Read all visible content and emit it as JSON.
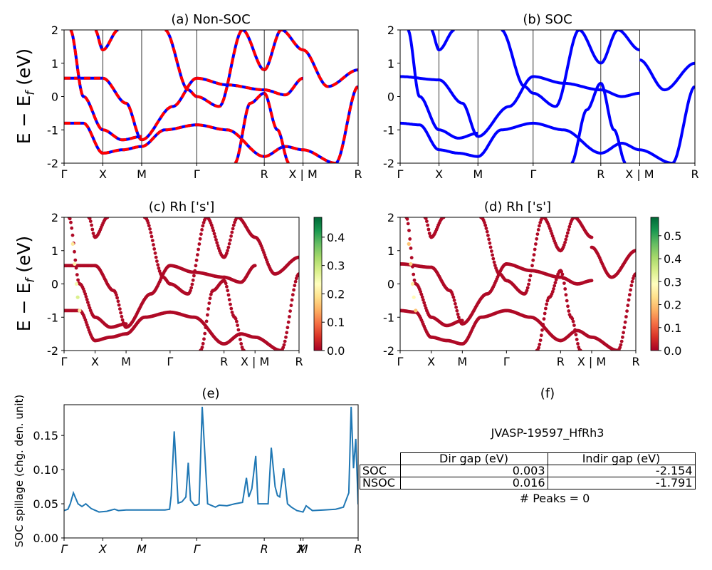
{
  "labels": {
    "ylabel_band": "E − E",
    "ylabel_band_sub": "f",
    "ylabel_band_unit": " (eV)",
    "ylabel_spill": "SOC spillage (chg. den. unit)"
  },
  "colors": {
    "soc": "#0000ff",
    "nsoc": "#ff0000",
    "spillage": "#1f77b4",
    "cmap": [
      "#a50026",
      "#d73027",
      "#f46d43",
      "#fdae61",
      "#fee08b",
      "#ffffbf",
      "#d9ef8b",
      "#a6d96a",
      "#66bd63",
      "#1a9850",
      "#006837"
    ]
  },
  "chart_data": [
    {
      "id": "a",
      "type": "line",
      "title": "(a) Non-SOC",
      "ylim": [
        -2,
        2
      ],
      "yticks": [
        "-2",
        "-1",
        "0",
        "1",
        "2"
      ],
      "xticks": [
        "Γ",
        "X",
        "M",
        "Γ",
        "R",
        "X | M",
        "R"
      ],
      "xtick_pos": [
        0,
        0.5,
        1,
        1.71,
        2.58,
        3.08,
        3.79
      ],
      "series": [
        {
          "x": [
            0,
            0.5
          ],
          "y": [
            0.55,
            0.55
          ]
        },
        {
          "x": [
            0.5,
            0.8,
            1.0
          ],
          "y": [
            0.55,
            -0.2,
            -1.3
          ]
        },
        {
          "x": [
            1.0,
            1.4,
            1.71
          ],
          "y": [
            -1.3,
            -0.3,
            0.55
          ]
        },
        {
          "x": [
            1.71,
            2.1,
            2.58
          ],
          "y": [
            0.55,
            0.35,
            0.2
          ]
        },
        {
          "x": [
            2.58,
            2.85,
            3.08
          ],
          "y": [
            0.2,
            0.05,
            0.55
          ]
        },
        {
          "x": [
            0,
            0.25,
            0.5
          ],
          "y": [
            -0.8,
            -0.8,
            -1.7
          ]
        },
        {
          "x": [
            0.5,
            0.75,
            1.0
          ],
          "y": [
            -1.7,
            -1.6,
            -1.5
          ]
        },
        {
          "x": [
            1.0,
            1.3,
            1.71
          ],
          "y": [
            -1.5,
            -1.0,
            -0.85
          ]
        },
        {
          "x": [
            1.71,
            2.1,
            2.58
          ],
          "y": [
            -0.85,
            -1.0,
            -1.8
          ]
        },
        {
          "x": [
            2.58,
            2.85,
            3.08
          ],
          "y": [
            -1.8,
            -1.5,
            -1.6
          ]
        },
        {
          "x": [
            0.08,
            0.25,
            0.5
          ],
          "y": [
            2.0,
            0.0,
            -1.0
          ]
        },
        {
          "x": [
            0.5,
            0.75,
            1.0
          ],
          "y": [
            -1.0,
            -1.3,
            -1.2
          ]
        },
        {
          "x": [
            0.4,
            0.5,
            0.7
          ],
          "y": [
            2.0,
            1.4,
            2.0
          ]
        },
        {
          "x": [
            1.3,
            1.6,
            1.71
          ],
          "y": [
            2.0,
            0.2,
            0.0
          ]
        },
        {
          "x": [
            1.71,
            2.0,
            2.3,
            2.58
          ],
          "y": [
            0.0,
            -0.3,
            2.0,
            0.8
          ]
        },
        {
          "x": [
            2.58,
            2.8,
            3.08
          ],
          "y": [
            0.8,
            2.0,
            1.4
          ]
        },
        {
          "x": [
            3.08,
            3.4,
            3.79
          ],
          "y": [
            1.4,
            0.3,
            0.8
          ]
        },
        {
          "x": [
            3.08,
            3.5,
            3.79
          ],
          "y": [
            -1.6,
            -2.0,
            0.3
          ]
        },
        {
          "x": [
            2.2,
            2.4,
            2.58
          ],
          "y": [
            -2.0,
            -0.2,
            0.1
          ]
        },
        {
          "x": [
            2.58,
            2.75,
            2.9
          ],
          "y": [
            0.1,
            -1.0,
            -2.0
          ]
        }
      ]
    },
    {
      "id": "b",
      "type": "line",
      "title": "(b) SOC",
      "ylim": [
        -2,
        2
      ],
      "yticks": [
        "-2",
        "-1",
        "0",
        "1",
        "2"
      ],
      "xticks": [
        "Γ",
        "X",
        "M",
        "Γ",
        "R",
        "X | M",
        "R"
      ],
      "xtick_pos": [
        0,
        0.5,
        1,
        1.71,
        2.58,
        3.08,
        3.79
      ],
      "series": [
        {
          "x": [
            0,
            0.5
          ],
          "y": [
            0.6,
            0.5
          ]
        },
        {
          "x": [
            0.5,
            0.8,
            1.0
          ],
          "y": [
            0.5,
            -0.2,
            -1.2
          ]
        },
        {
          "x": [
            1.0,
            1.4,
            1.71
          ],
          "y": [
            -1.2,
            -0.3,
            0.6
          ]
        },
        {
          "x": [
            1.71,
            2.1,
            2.58
          ],
          "y": [
            0.6,
            0.4,
            0.2
          ]
        },
        {
          "x": [
            2.58,
            2.85,
            3.08
          ],
          "y": [
            0.2,
            0.0,
            0.1
          ]
        },
        {
          "x": [
            0,
            0.25,
            0.5
          ],
          "y": [
            -0.8,
            -0.85,
            -1.6
          ]
        },
        {
          "x": [
            0.5,
            0.75,
            1.0
          ],
          "y": [
            -1.6,
            -1.7,
            -1.8
          ]
        },
        {
          "x": [
            1.0,
            1.3,
            1.71
          ],
          "y": [
            -1.8,
            -1.0,
            -0.8
          ]
        },
        {
          "x": [
            1.71,
            2.1,
            2.58
          ],
          "y": [
            -0.8,
            -1.0,
            -1.7
          ]
        },
        {
          "x": [
            2.58,
            2.85,
            3.08
          ],
          "y": [
            -1.7,
            -1.4,
            -1.6
          ]
        },
        {
          "x": [
            0.1,
            0.25,
            0.5
          ],
          "y": [
            2.0,
            0.0,
            -1.0
          ]
        },
        {
          "x": [
            0.5,
            0.75,
            1.0
          ],
          "y": [
            -1.0,
            -1.25,
            -1.1
          ]
        },
        {
          "x": [
            0.4,
            0.5,
            0.7
          ],
          "y": [
            2.0,
            1.4,
            2.0
          ]
        },
        {
          "x": [
            1.3,
            1.6,
            1.71
          ],
          "y": [
            2.0,
            0.3,
            0.1
          ]
        },
        {
          "x": [
            1.71,
            2.0,
            2.3,
            2.58
          ],
          "y": [
            0.1,
            -0.3,
            2.0,
            1.0
          ]
        },
        {
          "x": [
            2.58,
            2.8,
            3.08
          ],
          "y": [
            1.0,
            2.0,
            1.4
          ]
        },
        {
          "x": [
            3.08,
            3.4,
            3.79
          ],
          "y": [
            1.1,
            0.2,
            1.0
          ]
        },
        {
          "x": [
            3.08,
            3.5,
            3.79
          ],
          "y": [
            -1.6,
            -2.0,
            0.3
          ]
        },
        {
          "x": [
            2.2,
            2.4,
            2.58
          ],
          "y": [
            -2.0,
            -0.4,
            0.4
          ]
        },
        {
          "x": [
            2.58,
            2.75,
            2.9
          ],
          "y": [
            0.4,
            -1.0,
            -2.0
          ]
        }
      ]
    },
    {
      "id": "c",
      "type": "scatter",
      "title": "(c)  Rh ['s']",
      "ylim": [
        -2,
        2
      ],
      "yticks": [
        "-2",
        "-1",
        "0",
        "1",
        "2"
      ],
      "xticks": [
        "Γ",
        "X",
        "M",
        "Γ",
        "R",
        "X | M",
        "R"
      ],
      "xtick_pos": [
        0,
        0.5,
        1,
        1.71,
        2.58,
        3.08,
        3.79
      ],
      "colorbar": {
        "ticks": [
          "0.0",
          "0.1",
          "0.2",
          "0.3",
          "0.4"
        ],
        "tick_values": [
          0,
          0.1,
          0.2,
          0.3,
          0.4
        ],
        "max": 0.47
      },
      "bright_points": [
        {
          "x": 0.14,
          "y": 1.2,
          "c": 0.2
        },
        {
          "x": 0.17,
          "y": 0.6,
          "c": 0.22
        },
        {
          "x": 0.2,
          "y": 0.0,
          "c": 0.25
        },
        {
          "x": 0.22,
          "y": -0.4,
          "c": 0.28
        },
        {
          "x": 0.25,
          "y": -0.8,
          "c": 0.2
        }
      ]
    },
    {
      "id": "d",
      "type": "scatter",
      "title": "(d) Rh ['s']",
      "ylim": [
        -2,
        2
      ],
      "yticks": [
        "-2",
        "-1",
        "0",
        "1",
        "2"
      ],
      "xticks": [
        "Γ",
        "X",
        "M",
        "Γ",
        "R",
        "X | M",
        "R"
      ],
      "xtick_pos": [
        0,
        0.5,
        1,
        1.71,
        2.58,
        3.08,
        3.79
      ],
      "colorbar": {
        "ticks": [
          "0.0",
          "0.1",
          "0.2",
          "0.3",
          "0.4",
          "0.5"
        ],
        "tick_values": [
          0,
          0.1,
          0.2,
          0.3,
          0.4,
          0.5
        ],
        "max": 0.58
      },
      "bright_points": [
        {
          "x": 0.14,
          "y": 1.2,
          "c": 0.2
        },
        {
          "x": 0.17,
          "y": 0.6,
          "c": 0.22
        },
        {
          "x": 0.2,
          "y": 0.0,
          "c": 0.25
        },
        {
          "x": 0.22,
          "y": -0.4,
          "c": 0.28
        },
        {
          "x": 0.25,
          "y": -0.8,
          "c": 0.2
        }
      ]
    },
    {
      "id": "e",
      "type": "line",
      "title": "(e)",
      "ylabel": "SOC spillage (chg. den. unit)",
      "ylim": [
        0,
        0.195
      ],
      "yticks": [
        "0.00",
        "0.05",
        "0.10",
        "0.15"
      ],
      "ytick_values": [
        0,
        0.05,
        0.1,
        0.15
      ],
      "xticks": [
        "Γ",
        "X",
        "M",
        "Γ",
        "R",
        "X",
        "M",
        "R"
      ],
      "xtick_pos": [
        0,
        0.5,
        1,
        1.71,
        2.58,
        3.05,
        3.08,
        3.79
      ],
      "x": [
        0,
        0.05,
        0.08,
        0.12,
        0.18,
        0.23,
        0.28,
        0.35,
        0.45,
        0.55,
        0.65,
        0.7,
        0.8,
        0.9,
        1.0,
        1.1,
        1.2,
        1.3,
        1.36,
        1.38,
        1.42,
        1.47,
        1.52,
        1.57,
        1.6,
        1.63,
        1.68,
        1.71,
        1.74,
        1.78,
        1.85,
        1.95,
        2.0,
        2.1,
        2.2,
        2.3,
        2.35,
        2.38,
        2.42,
        2.47,
        2.5,
        2.53,
        2.58,
        2.63,
        2.67,
        2.72,
        2.75,
        2.78,
        2.83,
        2.88,
        2.93,
        3.0,
        3.08,
        3.12,
        3.2,
        3.35,
        3.5,
        3.6,
        3.67,
        3.7,
        3.73,
        3.76,
        3.79
      ],
      "values": [
        0.04,
        0.042,
        0.05,
        0.066,
        0.05,
        0.046,
        0.05,
        0.043,
        0.038,
        0.039,
        0.042,
        0.04,
        0.041,
        0.041,
        0.041,
        0.041,
        0.041,
        0.041,
        0.042,
        0.062,
        0.156,
        0.051,
        0.053,
        0.06,
        0.11,
        0.055,
        0.048,
        0.048,
        0.05,
        0.192,
        0.05,
        0.045,
        0.048,
        0.047,
        0.05,
        0.052,
        0.088,
        0.06,
        0.072,
        0.12,
        0.05,
        0.05,
        0.05,
        0.05,
        0.132,
        0.075,
        0.062,
        0.06,
        0.102,
        0.05,
        0.045,
        0.04,
        0.038,
        0.047,
        0.04,
        0.041,
        0.042,
        0.045,
        0.066,
        0.192,
        0.102,
        0.145,
        0.049
      ]
    }
  ],
  "info": {
    "title": "(f)",
    "jid": "JVASP-19597_HfRh3",
    "table_header": [
      "Dir gap (eV)",
      "Indir gap (eV)"
    ],
    "rows": [
      {
        "name": "SOC",
        "dir": "0.003",
        "indir": "-2.154"
      },
      {
        "name": "NSOC",
        "dir": "0.016",
        "indir": "-1.791"
      }
    ],
    "peaks": "# Peaks = 0"
  }
}
